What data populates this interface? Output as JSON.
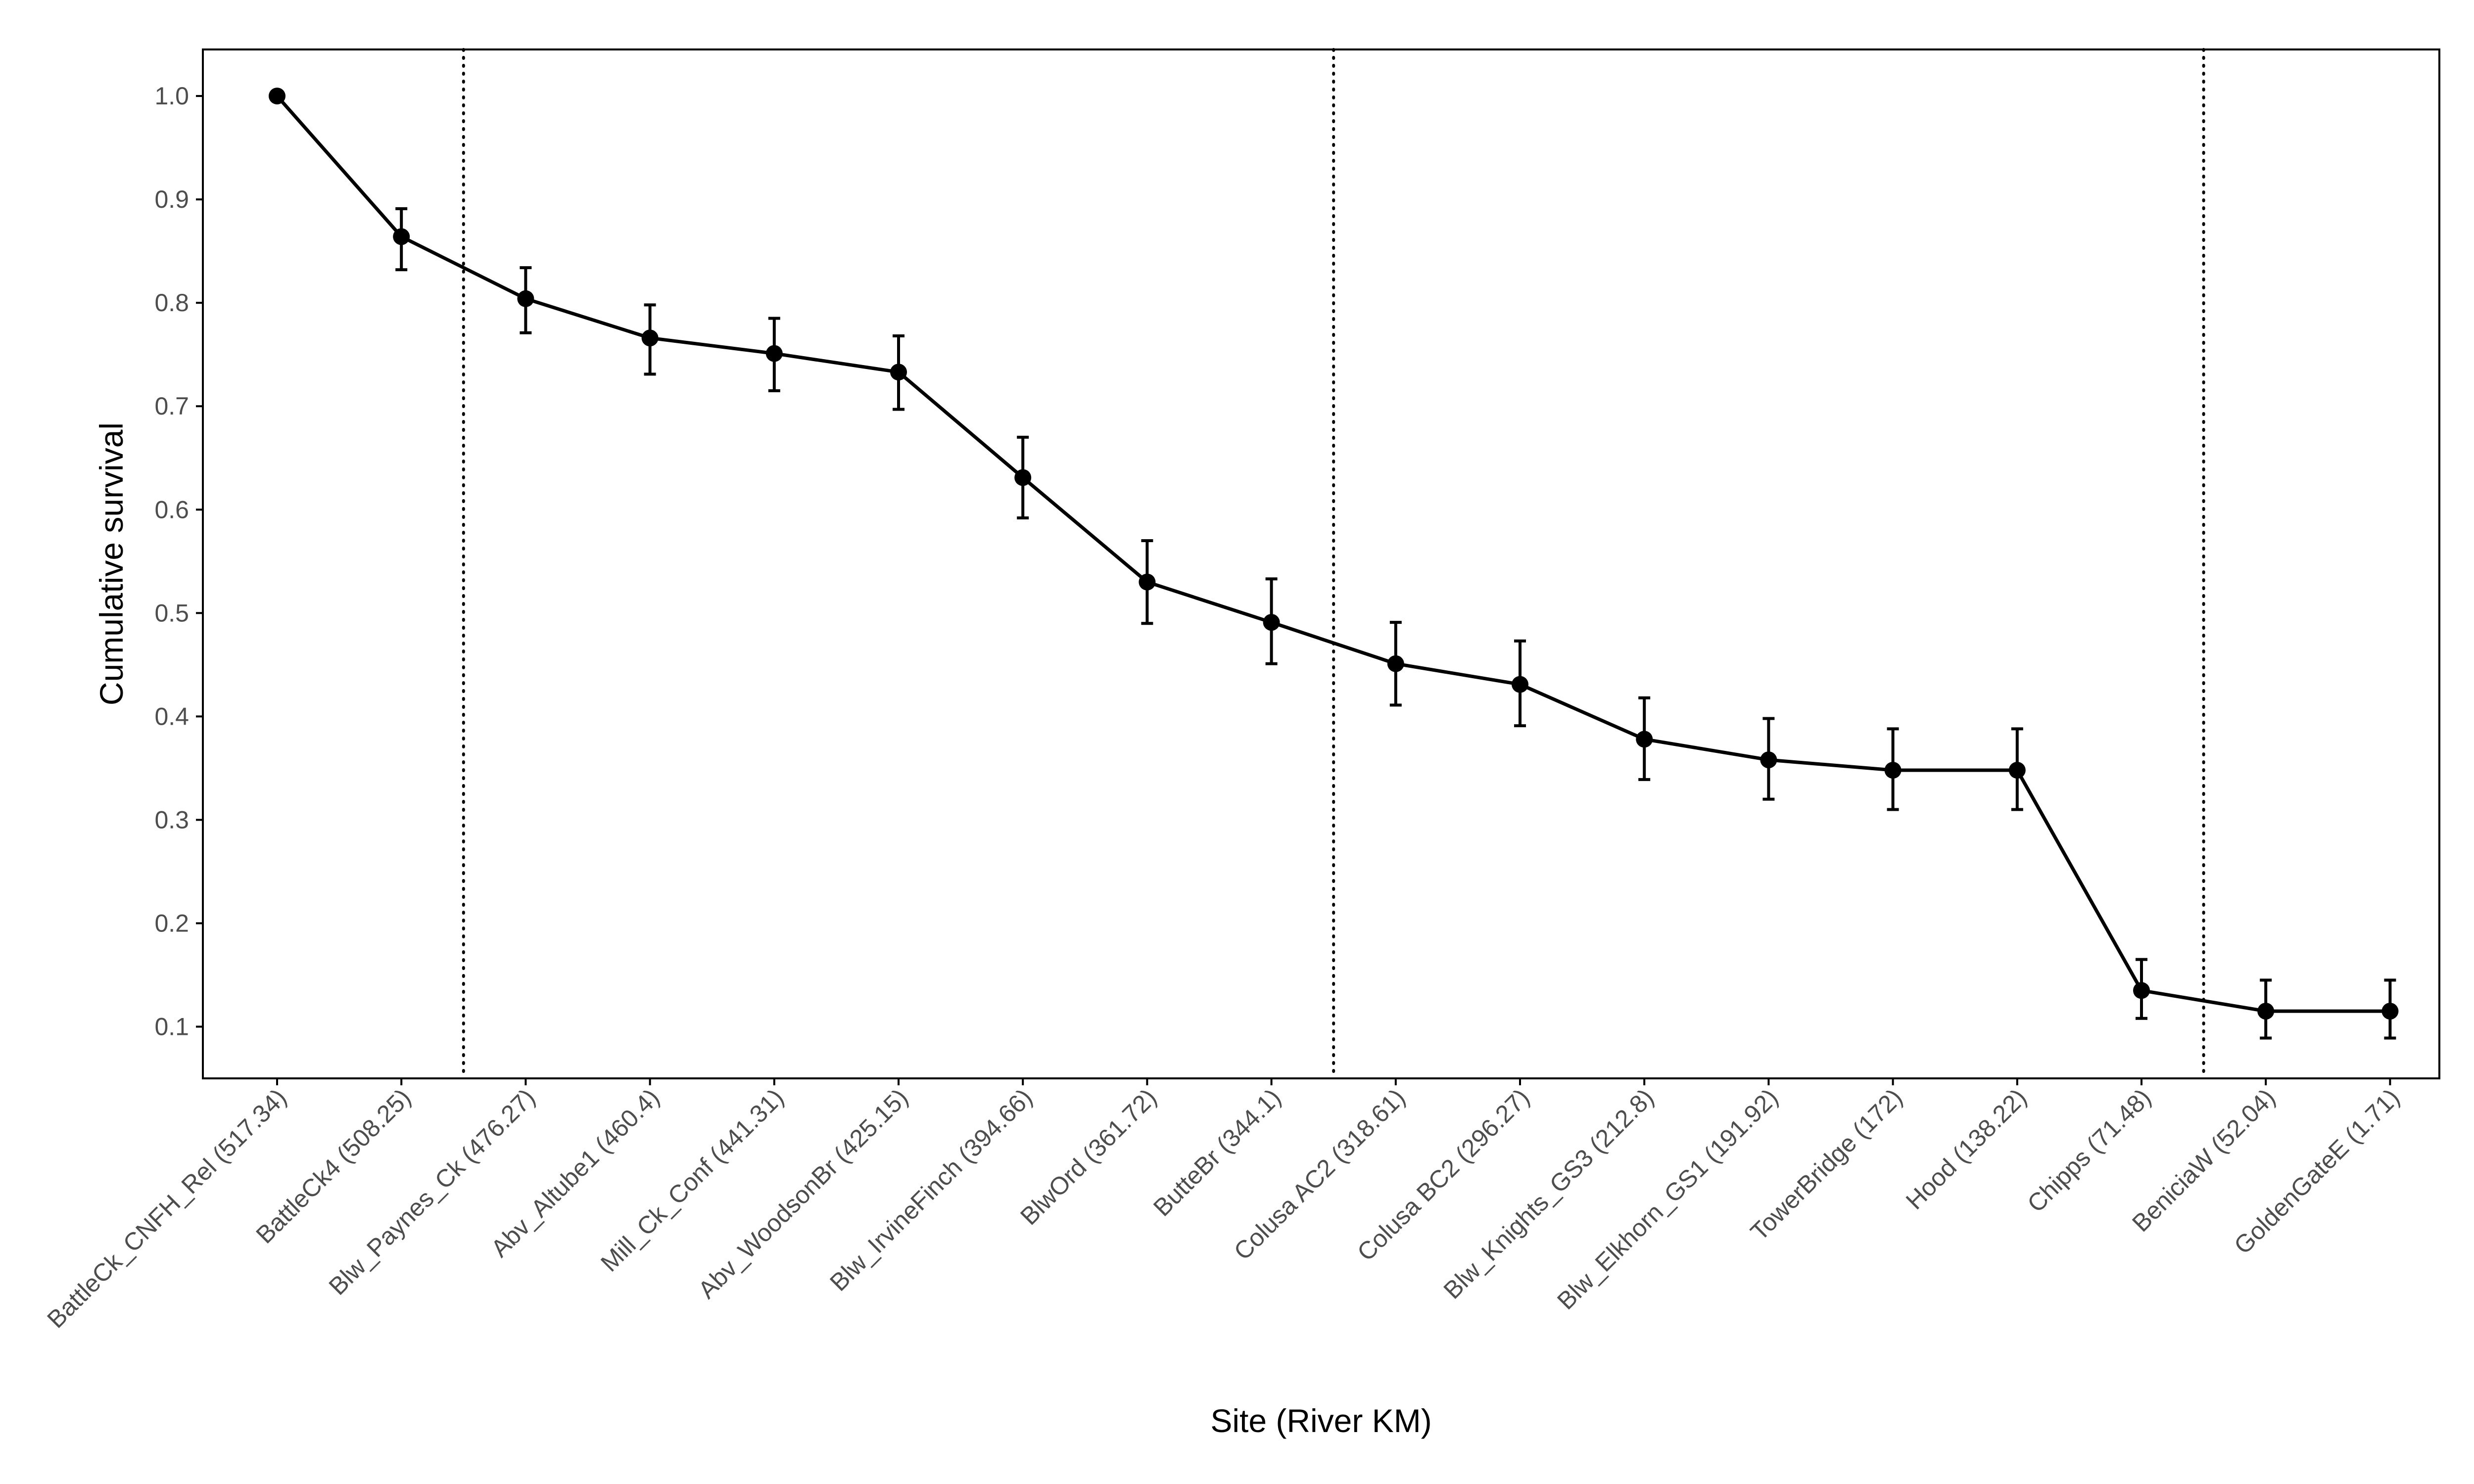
{
  "chart_data": {
    "type": "line",
    "title": "",
    "xlabel": "Site (River KM)",
    "ylabel": "Cumulative survival",
    "ylim": [
      0.05,
      1.045
    ],
    "yticks": [
      0.1,
      0.2,
      0.3,
      0.4,
      0.5,
      0.6,
      0.7,
      0.8,
      0.9,
      1.0
    ],
    "ytick_labels": [
      "0.1",
      "0.2",
      "0.3",
      "0.4",
      "0.5",
      "0.6",
      "0.7",
      "0.8",
      "0.9",
      "1.0"
    ],
    "grid": false,
    "legend": "none",
    "categories": [
      "BattleCk_CNFH_Rel (517.34)",
      "BattleCk4 (508.25)",
      "Blw_Paynes_Ck (476.27)",
      "Abv_Altube1 (460.4)",
      "Mill_Ck_Conf (441.31)",
      "Abv_WoodsonBr (425.15)",
      "Blw_IrvineFinch (394.66)",
      "BlwOrd (361.72)",
      "ButteBr (344.1)",
      "Colusa AC2 (318.61)",
      "Colusa BC2 (296.27)",
      "Blw_Knights_GS3 (212.8)",
      "Blw_Elkhorn_GS1 (191.92)",
      "TowerBridge (172)",
      "Hood (138.22)",
      "Chipps (71.48)",
      "BeniciaW (52.04)",
      "GoldenGateE (1.71)"
    ],
    "series": [
      {
        "values": [
          1.0,
          0.864,
          0.804,
          0.766,
          0.751,
          0.733,
          0.631,
          0.53,
          0.491,
          0.451,
          0.431,
          0.378,
          0.358,
          0.348,
          0.348,
          0.135,
          0.115,
          0.115
        ],
        "lower": [
          1.0,
          0.832,
          0.771,
          0.731,
          0.715,
          0.697,
          0.592,
          0.49,
          0.451,
          0.411,
          0.391,
          0.339,
          0.32,
          0.31,
          0.31,
          0.108,
          0.089,
          0.089
        ],
        "upper": [
          1.0,
          0.891,
          0.834,
          0.798,
          0.785,
          0.768,
          0.67,
          0.57,
          0.533,
          0.491,
          0.473,
          0.418,
          0.398,
          0.388,
          0.388,
          0.165,
          0.145,
          0.145
        ]
      }
    ],
    "vlines_between": [
      [
        1,
        2
      ],
      [
        8,
        9
      ],
      [
        15,
        16
      ]
    ],
    "colors": {
      "line": "#000000",
      "point": "#000000",
      "errorbar": "#000000",
      "vline": "#000000",
      "axis": "#000000",
      "tick_text": "#4d4d4d",
      "axis_title": "#000000"
    }
  }
}
